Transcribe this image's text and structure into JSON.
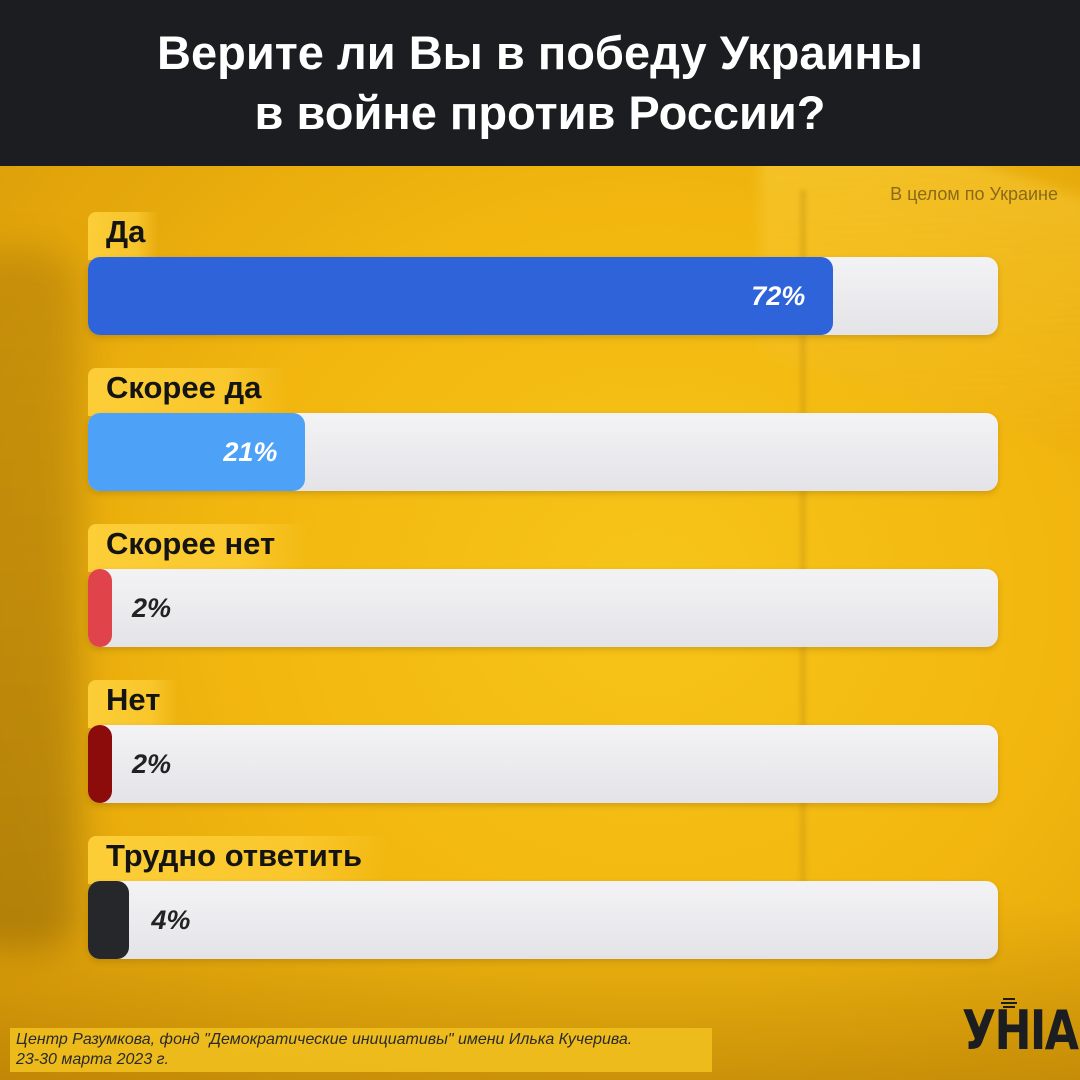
{
  "title_line1": "Верите ли Вы в победу Украины",
  "title_line2": "в войне против России?",
  "subtitle": "В целом по Украине",
  "footer_source": "Центр Разумкова, фонд \"Демократические инициативы\" имени Илька Кучерива.",
  "footer_dates": "23-30 марта 2023 г.",
  "logo_text": "УНІАН",
  "colors": {
    "header_bg": "#1c1d20",
    "background": "#f2b70f",
    "track": "#ececef"
  },
  "chart_data": {
    "type": "bar",
    "orientation": "horizontal",
    "title": "Верите ли Вы в победу Украины в войне против России?",
    "subtitle": "В целом по Украине",
    "unit": "%",
    "xlim": [
      0,
      80
    ],
    "categories": [
      "Да",
      "Скорее да",
      "Скорее нет",
      "Нет",
      "Трудно ответить"
    ],
    "values": [
      72,
      21,
      2,
      2,
      4
    ],
    "value_labels": [
      "72%",
      "21%",
      "2%",
      "2%",
      "4%"
    ],
    "bar_colors": [
      "#2f63da",
      "#4da2f7",
      "#e0434a",
      "#8c0c0c",
      "#26272b"
    ],
    "grid": false,
    "legend": "none"
  }
}
